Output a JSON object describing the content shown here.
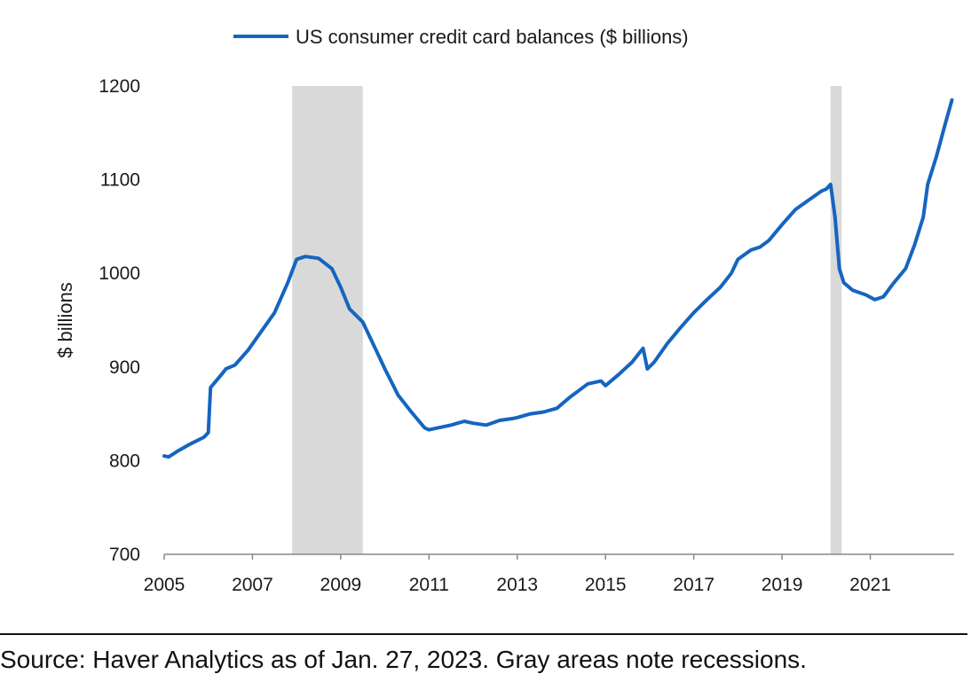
{
  "chart_data": {
    "type": "line",
    "legend": {
      "label": "US consumer credit card balances ($ billions)",
      "placement": "top-center"
    },
    "ylabel": "$ billions",
    "xlabel": "",
    "ylim": [
      700,
      1200
    ],
    "yticks": [
      700,
      800,
      900,
      1000,
      1100,
      1200
    ],
    "xlim": [
      2005,
      2022.9
    ],
    "xticks": [
      2005,
      2007,
      2009,
      2011,
      2013,
      2015,
      2017,
      2019,
      2021
    ],
    "grid": false,
    "line_color": "#1565c0",
    "recessions": [
      {
        "start": 2007.9,
        "end": 2009.5
      },
      {
        "start": 2020.1,
        "end": 2020.35
      }
    ],
    "series": [
      {
        "x": [
          2005.0,
          2005.1,
          2005.3,
          2005.6,
          2005.9,
          2006.0,
          2006.05,
          2006.3,
          2006.4,
          2006.6,
          2006.9,
          2007.2,
          2007.5,
          2007.8,
          2008.0,
          2008.2,
          2008.5,
          2008.8,
          2009.0,
          2009.2,
          2009.5,
          2009.8,
          2010.0,
          2010.3,
          2010.6,
          2010.9,
          2011.0,
          2011.2,
          2011.5,
          2011.8,
          2012.0,
          2012.3,
          2012.6,
          2012.9,
          2013.0,
          2013.3,
          2013.6,
          2013.9,
          2014.2,
          2014.4,
          2014.6,
          2014.9,
          2015.0,
          2015.3,
          2015.6,
          2015.85,
          2015.95,
          2016.1,
          2016.4,
          2016.7,
          2017.0,
          2017.3,
          2017.6,
          2017.85,
          2018.0,
          2018.3,
          2018.5,
          2018.7,
          2019.0,
          2019.3,
          2019.6,
          2019.9,
          2020.0,
          2020.1,
          2020.2,
          2020.3,
          2020.4,
          2020.6,
          2020.9,
          2021.1,
          2021.3,
          2021.5,
          2021.8,
          2022.0,
          2022.2,
          2022.3,
          2022.5,
          2022.7,
          2022.85
        ],
        "y": [
          805,
          804,
          810,
          818,
          825,
          830,
          878,
          892,
          898,
          902,
          918,
          938,
          958,
          990,
          1015,
          1018,
          1016,
          1005,
          985,
          962,
          948,
          918,
          898,
          870,
          852,
          835,
          833,
          835,
          838,
          842,
          840,
          838,
          843,
          845,
          846,
          850,
          852,
          856,
          868,
          875,
          882,
          885,
          880,
          892,
          905,
          920,
          898,
          905,
          925,
          942,
          958,
          972,
          985,
          1000,
          1015,
          1025,
          1028,
          1035,
          1052,
          1068,
          1078,
          1088,
          1090,
          1095,
          1060,
          1005,
          990,
          982,
          977,
          972,
          975,
          988,
          1005,
          1030,
          1060,
          1095,
          1125,
          1160,
          1185
        ]
      }
    ]
  },
  "source_note": "Source: Haver Analytics as of Jan. 27, 2023. Gray areas note recessions."
}
